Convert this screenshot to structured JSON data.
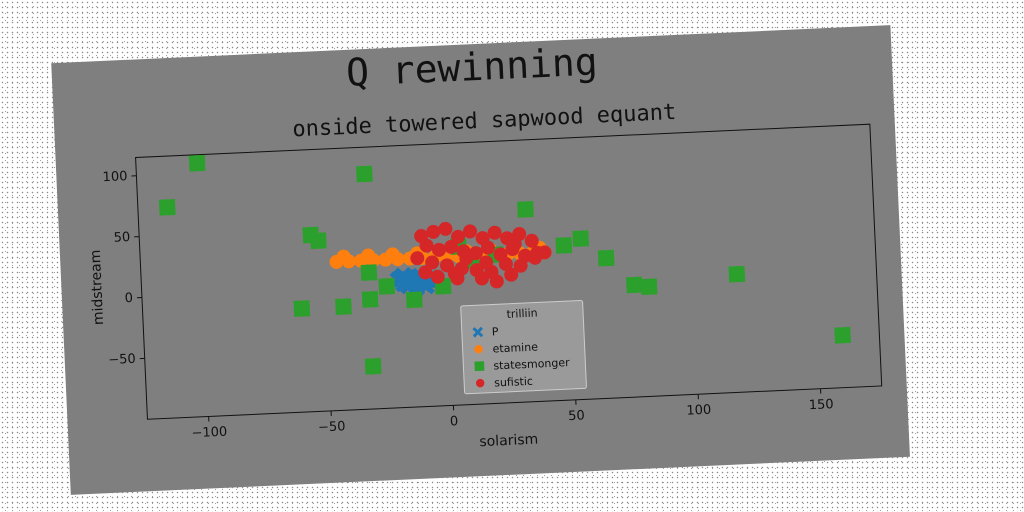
{
  "chart_data": {
    "type": "scatter",
    "suptitle": "Q rewinning",
    "title": "onside towered sapwood equant",
    "xlabel": "solarism",
    "ylabel": "midstream",
    "xlim": [
      -125,
      175
    ],
    "ylim": [
      -100,
      115
    ],
    "xticks": [
      -100,
      -50,
      0,
      50,
      100,
      150
    ],
    "yticks": [
      -50,
      0,
      50,
      100
    ],
    "grid": false,
    "legend": {
      "title": "trilliin",
      "placement": "lower-center"
    },
    "series": [
      {
        "name": "P",
        "marker": "x",
        "color": "#1f77b4",
        "points": [
          [
            -20,
            5
          ],
          [
            -18,
            8
          ],
          [
            -15,
            3
          ],
          [
            -12,
            6
          ],
          [
            -10,
            2
          ],
          [
            -8,
            4
          ],
          [
            -6,
            1
          ],
          [
            -16,
            0
          ],
          [
            -13,
            -2
          ],
          [
            -9,
            -1
          ],
          [
            -18,
            2
          ],
          [
            -11,
            7
          ],
          [
            -14,
            4
          ],
          [
            -7,
            5
          ],
          [
            -19,
            6
          ],
          [
            -5,
            3
          ]
        ]
      },
      {
        "name": "etamine",
        "marker": "o",
        "color": "#ff7f0e",
        "points": [
          [
            -45,
            22
          ],
          [
            -40,
            22
          ],
          [
            -35,
            22
          ],
          [
            -30,
            22
          ],
          [
            -25,
            22
          ],
          [
            -20,
            22
          ],
          [
            -15,
            22
          ],
          [
            -10,
            22
          ],
          [
            -5,
            22
          ],
          [
            0,
            22
          ],
          [
            5,
            22
          ],
          [
            10,
            22
          ],
          [
            15,
            22
          ],
          [
            20,
            22
          ],
          [
            25,
            22
          ],
          [
            30,
            22
          ],
          [
            35,
            22
          ],
          [
            40,
            22
          ],
          [
            -42,
            26
          ],
          [
            -32,
            26
          ],
          [
            -22,
            26
          ],
          [
            -12,
            26
          ],
          [
            -2,
            26
          ],
          [
            8,
            26
          ],
          [
            18,
            26
          ],
          [
            28,
            26
          ],
          [
            38,
            26
          ]
        ]
      },
      {
        "name": "statesmonger",
        "marker": "s",
        "color": "#2ca02c",
        "points": [
          [
            -100,
            108
          ],
          [
            -113,
            73
          ],
          [
            -32,
            93
          ],
          [
            -55,
            45
          ],
          [
            -52,
            40
          ],
          [
            -32,
            12
          ],
          [
            -25,
            0
          ],
          [
            -32,
            -10
          ],
          [
            -43,
            -15
          ],
          [
            -60,
            -15
          ],
          [
            -14,
            -12
          ],
          [
            -32,
            -65
          ],
          [
            33,
            58
          ],
          [
            48,
            27
          ],
          [
            55,
            32
          ],
          [
            65,
            15
          ],
          [
            76,
            -8
          ],
          [
            82,
            -10
          ],
          [
            118,
            -3
          ],
          [
            160,
            -57
          ],
          [
            20,
            22
          ],
          [
            5,
            30
          ],
          [
            -2,
            -2
          ],
          [
            10,
            18
          ]
        ]
      },
      {
        "name": "sufistic",
        "marker": "o",
        "color": "#d62728",
        "points": [
          [
            -10,
            40
          ],
          [
            -5,
            43
          ],
          [
            0,
            45
          ],
          [
            5,
            38
          ],
          [
            10,
            42
          ],
          [
            15,
            36
          ],
          [
            20,
            40
          ],
          [
            25,
            35
          ],
          [
            30,
            38
          ],
          [
            35,
            32
          ],
          [
            -8,
            32
          ],
          [
            -3,
            28
          ],
          [
            2,
            30
          ],
          [
            7,
            26
          ],
          [
            12,
            24
          ],
          [
            17,
            28
          ],
          [
            22,
            22
          ],
          [
            27,
            26
          ],
          [
            32,
            20
          ],
          [
            37,
            22
          ],
          [
            -12,
            22
          ],
          [
            -6,
            18
          ],
          [
            0,
            15
          ],
          [
            6,
            12
          ],
          [
            12,
            10
          ],
          [
            18,
            8
          ],
          [
            24,
            14
          ],
          [
            30,
            12
          ],
          [
            36,
            18
          ],
          [
            40,
            22
          ],
          [
            -4,
            6
          ],
          [
            4,
            4
          ],
          [
            14,
            3
          ],
          [
            20,
            0
          ],
          [
            26,
            5
          ],
          [
            -9,
            10
          ],
          [
            8,
            20
          ],
          [
            16,
            16
          ],
          [
            28,
            30
          ],
          [
            3,
            8
          ]
        ]
      }
    ]
  }
}
